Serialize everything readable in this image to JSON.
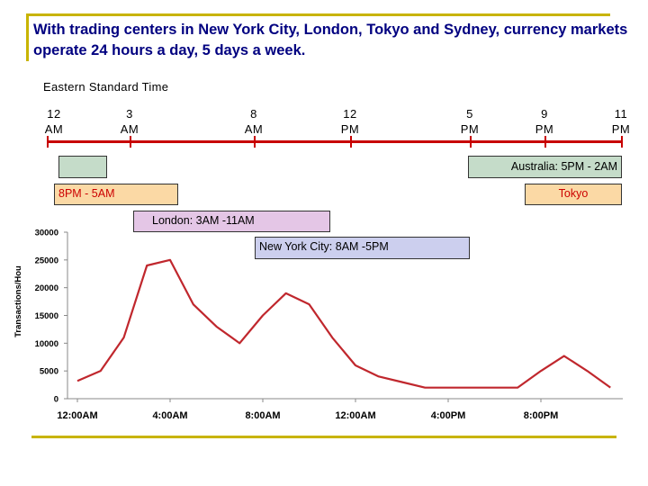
{
  "title": "With trading centers in New York City, London, Tokyo and Sydney, currency markets operate 24 hours a day, 5 days a week.",
  "timezone_label": "Eastern Standard Time",
  "timeline": {
    "ticks": [
      {
        "num": "12",
        "unit": "AM"
      },
      {
        "num": "3",
        "unit": "AM"
      },
      {
        "num": "8",
        "unit": "AM"
      },
      {
        "num": "12",
        "unit": "PM"
      },
      {
        "num": "5",
        "unit": "PM"
      },
      {
        "num": "9",
        "unit": "PM"
      },
      {
        "num": "11",
        "unit": "PM"
      }
    ]
  },
  "sessions": {
    "australia": {
      "label": "Australia: 5PM - 2AM",
      "color": "#c5dcc9"
    },
    "tokyo": {
      "label": "Tokyo",
      "extra_label": "8PM - 5AM",
      "color": "#fbd9a5"
    },
    "london": {
      "label": "London: 3AM -11AM",
      "color": "#e4c6e6"
    },
    "new_york": {
      "label": "New York City: 8AM -5PM",
      "color": "#cccfee"
    }
  },
  "chart_data": {
    "type": "line",
    "title": "",
    "xlabel": "",
    "ylabel": "Transactions/Hou",
    "ylim": [
      0,
      30000
    ],
    "yticks": [
      0,
      5000,
      10000,
      15000,
      20000,
      25000,
      30000
    ],
    "xtick_labels": [
      "12:00AM",
      "4:00AM",
      "8:00AM",
      "12:00AM",
      "4:00PM",
      "8:00PM"
    ],
    "x_hours": [
      0,
      1,
      2,
      3,
      4,
      5,
      6,
      7,
      8,
      9,
      10,
      11,
      12,
      13,
      14,
      15,
      16,
      17,
      18,
      19,
      20,
      21,
      22,
      23
    ],
    "series": [
      {
        "values": [
          3200,
          5000,
          11000,
          24000,
          25000,
          17000,
          13000,
          10000,
          15000,
          19000,
          17000,
          11000,
          6000,
          4000,
          3000,
          2000,
          2000,
          2000,
          2000,
          2000,
          5000,
          7700,
          5000,
          2000
        ],
        "color": "#c0272d"
      }
    ],
    "grid": false
  }
}
